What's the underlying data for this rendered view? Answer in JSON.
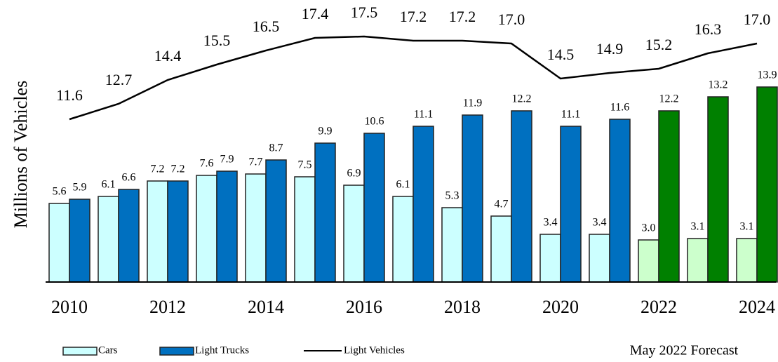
{
  "chart_data": {
    "type": "bar",
    "y_label": "Millions of Vehicles",
    "note": "May 2022 Forecast",
    "categories": [
      "2010",
      null,
      "2012",
      null,
      "2014",
      null,
      "2016",
      null,
      "2018",
      null,
      "2020",
      null,
      "2022",
      null,
      "2024"
    ],
    "ylim": [
      0,
      20
    ],
    "series": [
      {
        "name": "Cars",
        "type": "bar",
        "color": "#ccffff",
        "colors": [
          "#ccffff",
          "#ccffff",
          "#ccffff",
          "#ccffff",
          "#ccffff",
          "#ccffff",
          "#ccffff",
          "#ccffff",
          "#ccffff",
          "#ccffff",
          "#ccffff",
          "#ccffff",
          "#ccffcc",
          "#ccffcc",
          "#ccffcc"
        ],
        "values": [
          5.6,
          6.1,
          7.2,
          7.6,
          7.7,
          7.5,
          6.9,
          6.1,
          5.3,
          4.7,
          3.4,
          3.4,
          3.0,
          3.1,
          3.1
        ],
        "value_labels": [
          "5.6",
          "6.1",
          "7.2",
          "7.6",
          "7.7",
          "7.5",
          "6.9",
          "6.1",
          "5.3",
          "4.7",
          "3.4",
          "3.4",
          "3.0",
          "3.1",
          "3.1"
        ]
      },
      {
        "name": "Light Trucks",
        "type": "bar",
        "color": "#0070c0",
        "colors": [
          "#0070c0",
          "#0070c0",
          "#0070c0",
          "#0070c0",
          "#0070c0",
          "#0070c0",
          "#0070c0",
          "#0070c0",
          "#0070c0",
          "#0070c0",
          "#0070c0",
          "#0070c0",
          "#008000",
          "#008000",
          "#008000"
        ],
        "values": [
          5.9,
          6.6,
          7.2,
          7.9,
          8.7,
          9.9,
          10.6,
          11.1,
          11.9,
          12.2,
          11.1,
          11.6,
          12.2,
          13.2,
          13.9
        ],
        "value_labels": [
          "5.9",
          "6.6",
          "7.2",
          "7.9",
          "8.7",
          "9.9",
          "10.6",
          "11.1",
          "11.9",
          "12.2",
          "11.1",
          "11.6",
          "12.2",
          "13.2",
          "13.9"
        ]
      },
      {
        "name": "Light Vehicles",
        "type": "line",
        "color": "#000000",
        "values": [
          11.6,
          12.7,
          14.4,
          15.5,
          16.5,
          17.4,
          17.5,
          17.2,
          17.2,
          17.0,
          14.5,
          14.9,
          15.2,
          16.3,
          17.0
        ],
        "value_labels": [
          "11.6",
          "12.7",
          "14.4",
          "15.5",
          "16.5",
          "17.4",
          "17.5",
          "17.2",
          "17.2",
          "17.0",
          "14.5",
          "14.9",
          "15.2",
          "16.3",
          "17.0"
        ]
      }
    ]
  }
}
